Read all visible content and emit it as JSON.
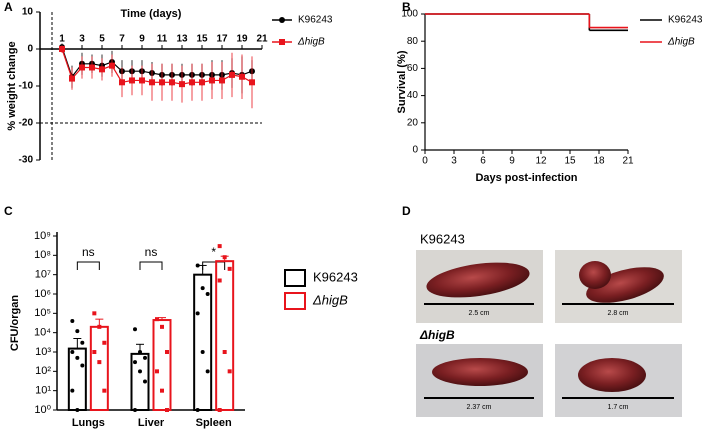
{
  "panels": [
    "A",
    "B",
    "C",
    "D"
  ],
  "chart_data": [
    {
      "type": "line",
      "title": "Time (days)",
      "y_label": "% weight change",
      "x": [
        1,
        2,
        3,
        4,
        5,
        6,
        7,
        8,
        9,
        10,
        11,
        12,
        13,
        14,
        15,
        16,
        17,
        18,
        19,
        20
      ],
      "xlim": [
        -1.2,
        21
      ],
      "xticks": [
        1,
        3,
        5,
        7,
        9,
        11,
        13,
        15,
        17,
        19,
        21
      ],
      "ylim": [
        -30,
        10
      ],
      "yticks": [
        -30,
        -20,
        -10,
        0,
        10
      ],
      "hline": -20,
      "vline": 0,
      "series": [
        {
          "name": "K96243",
          "color": "#000000",
          "marker": "circle",
          "values": [
            0.5,
            -7.5,
            -4,
            -4,
            -4.5,
            -3.5,
            -6,
            -6,
            -6,
            -6.5,
            -7,
            -7,
            -7,
            -7,
            -7,
            -7,
            -7,
            -6.5,
            -7,
            -6
          ],
          "errors": [
            1,
            3,
            3,
            2.5,
            3,
            3,
            3,
            3,
            3,
            3,
            3,
            3,
            3,
            3,
            3,
            4,
            4,
            4,
            5,
            3
          ]
        },
        {
          "name": "ΔhigB",
          "color": "#e8141c",
          "marker": "square",
          "values": [
            0,
            -8,
            -5,
            -5,
            -5.5,
            -4.5,
            -9,
            -8.5,
            -8.5,
            -9,
            -9,
            -9,
            -9.5,
            -9,
            -9,
            -8.5,
            -8.5,
            -7,
            -7.5,
            -9
          ],
          "errors": [
            1,
            3,
            3,
            3,
            3,
            3,
            4,
            4,
            4,
            5,
            5,
            5,
            5,
            5,
            5,
            5,
            5,
            6,
            6,
            7
          ]
        }
      ]
    },
    {
      "type": "step",
      "x_label": "Days post-infection",
      "y_label": "Survival (%)",
      "x": [
        0,
        17,
        21
      ],
      "xlim": [
        0,
        21
      ],
      "xticks": [
        0,
        3,
        6,
        9,
        12,
        15,
        18,
        21
      ],
      "ylim": [
        0,
        100
      ],
      "yticks": [
        0,
        20,
        40,
        60,
        80,
        100
      ],
      "series": [
        {
          "name": "K96243",
          "color": "#000000",
          "values": [
            100,
            88,
            88
          ]
        },
        {
          "name": "ΔhigB",
          "color": "#e8141c",
          "values": [
            100,
            90,
            90
          ]
        }
      ]
    },
    {
      "type": "bar",
      "y_label": "CFU/organ",
      "log_scale": true,
      "categories": [
        "Lungs",
        "Liver",
        "Spleen"
      ],
      "ylim": [
        1,
        1000000000
      ],
      "yticks": [
        {
          "value": 1,
          "label": "10⁰"
        },
        {
          "value": 10,
          "label": "10¹"
        },
        {
          "value": 100,
          "label": "10²"
        },
        {
          "value": 1000,
          "label": "10³"
        },
        {
          "value": 10000,
          "label": "10⁴"
        },
        {
          "value": 100000,
          "label": "10⁵"
        },
        {
          "value": 1000000,
          "label": "10⁶"
        },
        {
          "value": 10000000,
          "label": "10⁷"
        },
        {
          "value": 100000000,
          "label": "10⁸"
        },
        {
          "value": 1000000000,
          "label": "10⁹"
        }
      ],
      "annotations": [
        "ns",
        "ns",
        "*"
      ],
      "series": [
        {
          "name": "K96243",
          "color": "#000000",
          "values": [
            1500,
            800,
            10000000
          ],
          "errors": [
            3500,
            1700,
            20000000
          ],
          "points": [
            [
              40000,
              12000,
              3000,
              1000,
              500,
              200,
              10,
              1
            ],
            [
              15000,
              1000,
              500,
              300,
              100,
              30,
              1
            ],
            [
              30000000,
              2000000,
              1000000,
              100000,
              1000,
              100,
              1
            ]
          ]
        },
        {
          "name": "ΔhigB",
          "color": "#e8141c",
          "values": [
            20000,
            45000,
            50000000
          ],
          "errors": [
            30000,
            15000,
            40000000
          ],
          "points": [
            [
              100000,
              20000,
              3000,
              1000,
              300,
              10
            ],
            [
              50000,
              20000,
              1000,
              100,
              10,
              1
            ],
            [
              300000000,
              80000000,
              20000000,
              5000000,
              1000,
              100,
              1
            ]
          ]
        }
      ]
    }
  ],
  "photos": {
    "groups": [
      "K96243",
      "ΔhigB"
    ],
    "scales": [
      "2.5 cm",
      "2.8 cm",
      "2.37 cm",
      "1.7 cm"
    ]
  }
}
